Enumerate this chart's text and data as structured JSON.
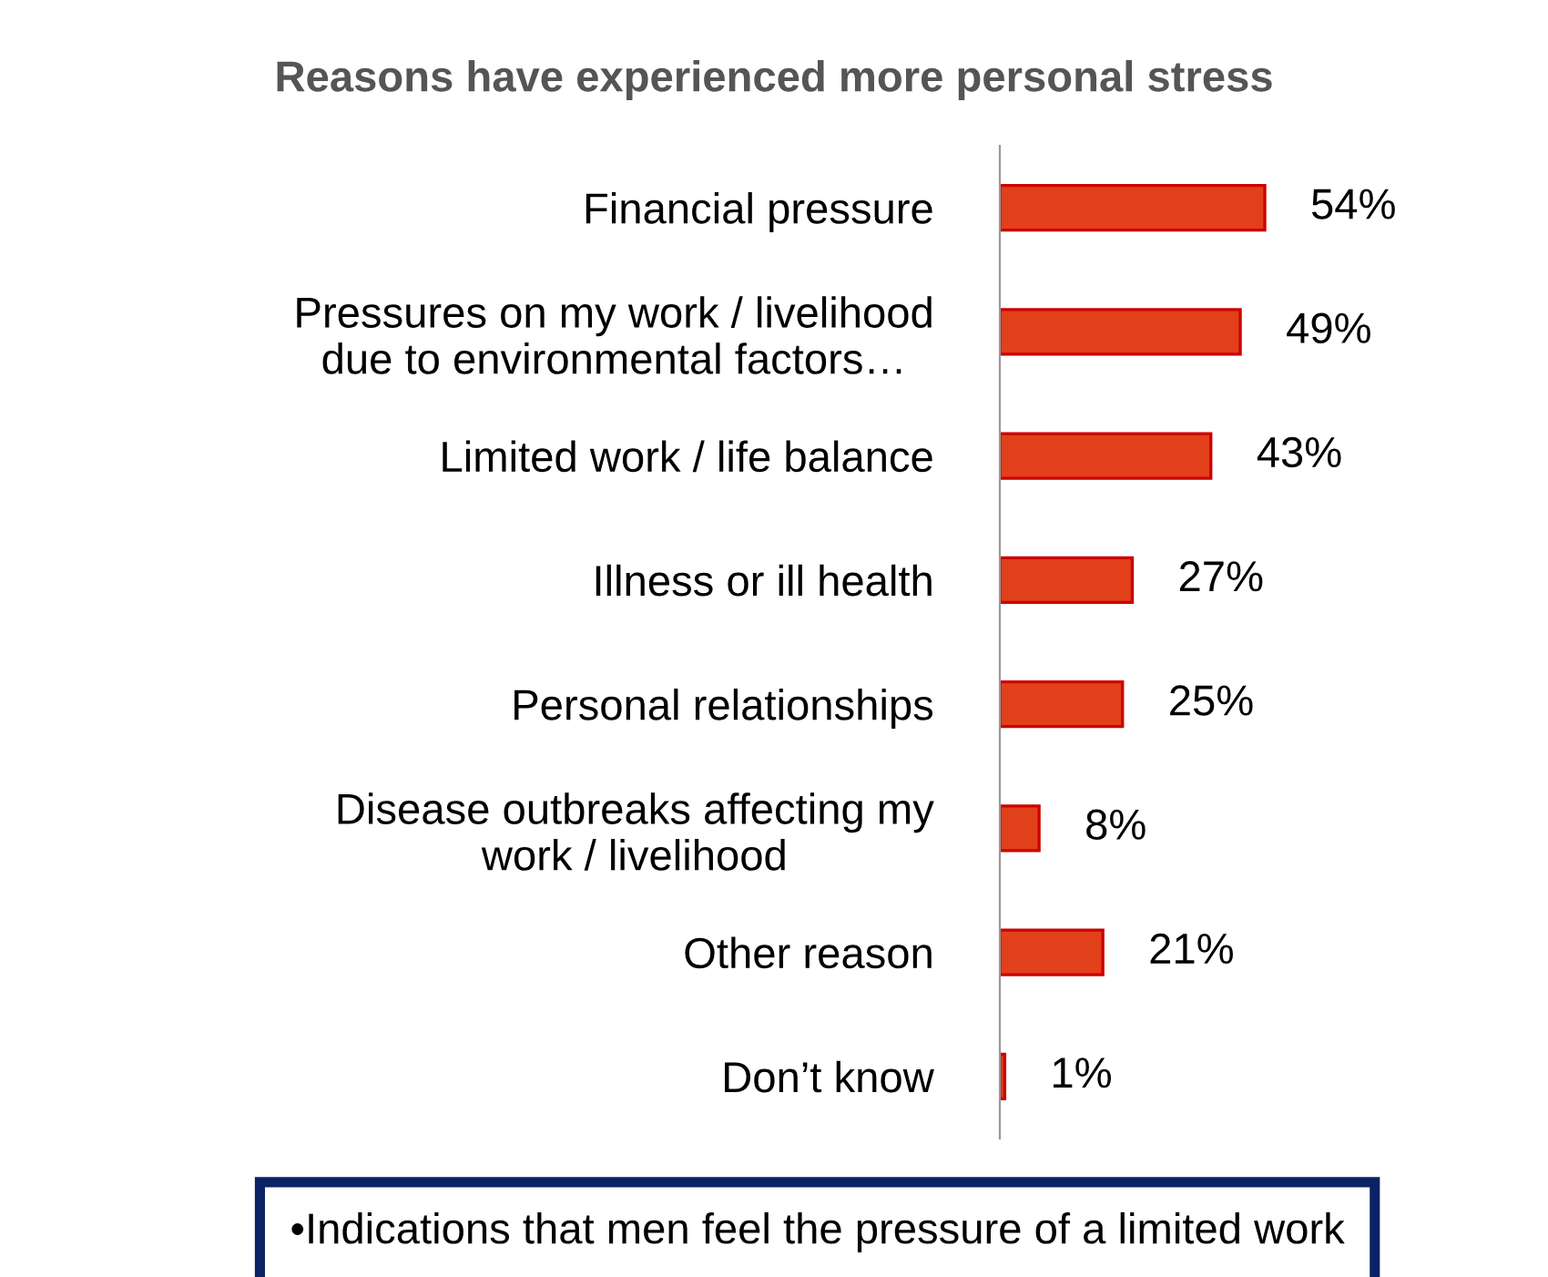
{
  "chart_data": {
    "type": "bar",
    "orientation": "horizontal",
    "title": "Reasons have experienced more personal stress",
    "categories": [
      "Financial pressure",
      "Pressures on my work / livelihood\ndue to environmental factors…",
      "Limited work / life balance",
      "Illness or ill health",
      "Personal relationships",
      "Disease outbreaks affecting my\nwork / livelihood",
      "Other reason",
      "Don’t know"
    ],
    "series": [
      {
        "color": "#e2401a",
        "values": [
          54,
          49,
          43,
          27,
          25,
          8,
          21,
          1
        ],
        "value_labels": [
          "54%",
          "49%",
          "43%",
          "27%",
          "25%",
          "8%",
          "21%",
          "1%"
        ]
      }
    ],
    "annotations": [
      "•Indications that men feel the pressure of a limited work"
    ],
    "grid": false
  }
}
